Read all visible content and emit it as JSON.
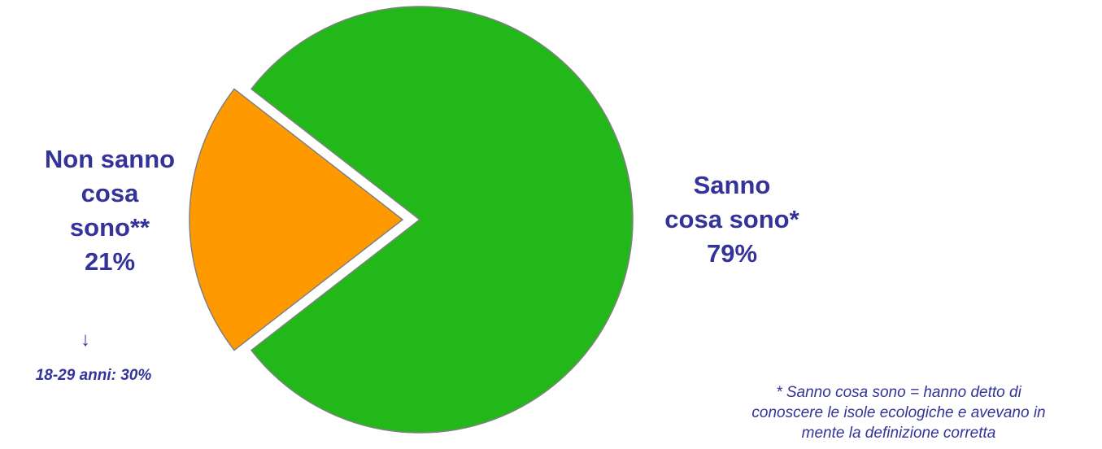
{
  "chart_data": {
    "type": "pie",
    "slices": [
      {
        "label": "Sanno cosa sono*",
        "value": 79,
        "value_label": "79%",
        "color": "#22b81a"
      },
      {
        "label": "Non sanno cosa sono**",
        "value": 21,
        "value_label": "21%",
        "color": "#ff9900"
      }
    ],
    "outline_color": "#808080"
  },
  "labels": {
    "sanno": {
      "line1": "Sanno",
      "line2": "cosa sono*",
      "pct": "79%"
    },
    "non_sanno": {
      "line1": "Non sanno",
      "line2": "cosa",
      "line3": "sono**",
      "pct": "21%"
    }
  },
  "arrow_glyph": "↓",
  "subgroup_note": "18-29 anni: 30%",
  "footnote": {
    "line1": "* Sanno cosa sono = hanno detto di",
    "line2": "conoscere le isole ecologiche e avevano in",
    "line3": "mente la definizione corretta"
  },
  "colors": {
    "label_text": "#333399"
  }
}
